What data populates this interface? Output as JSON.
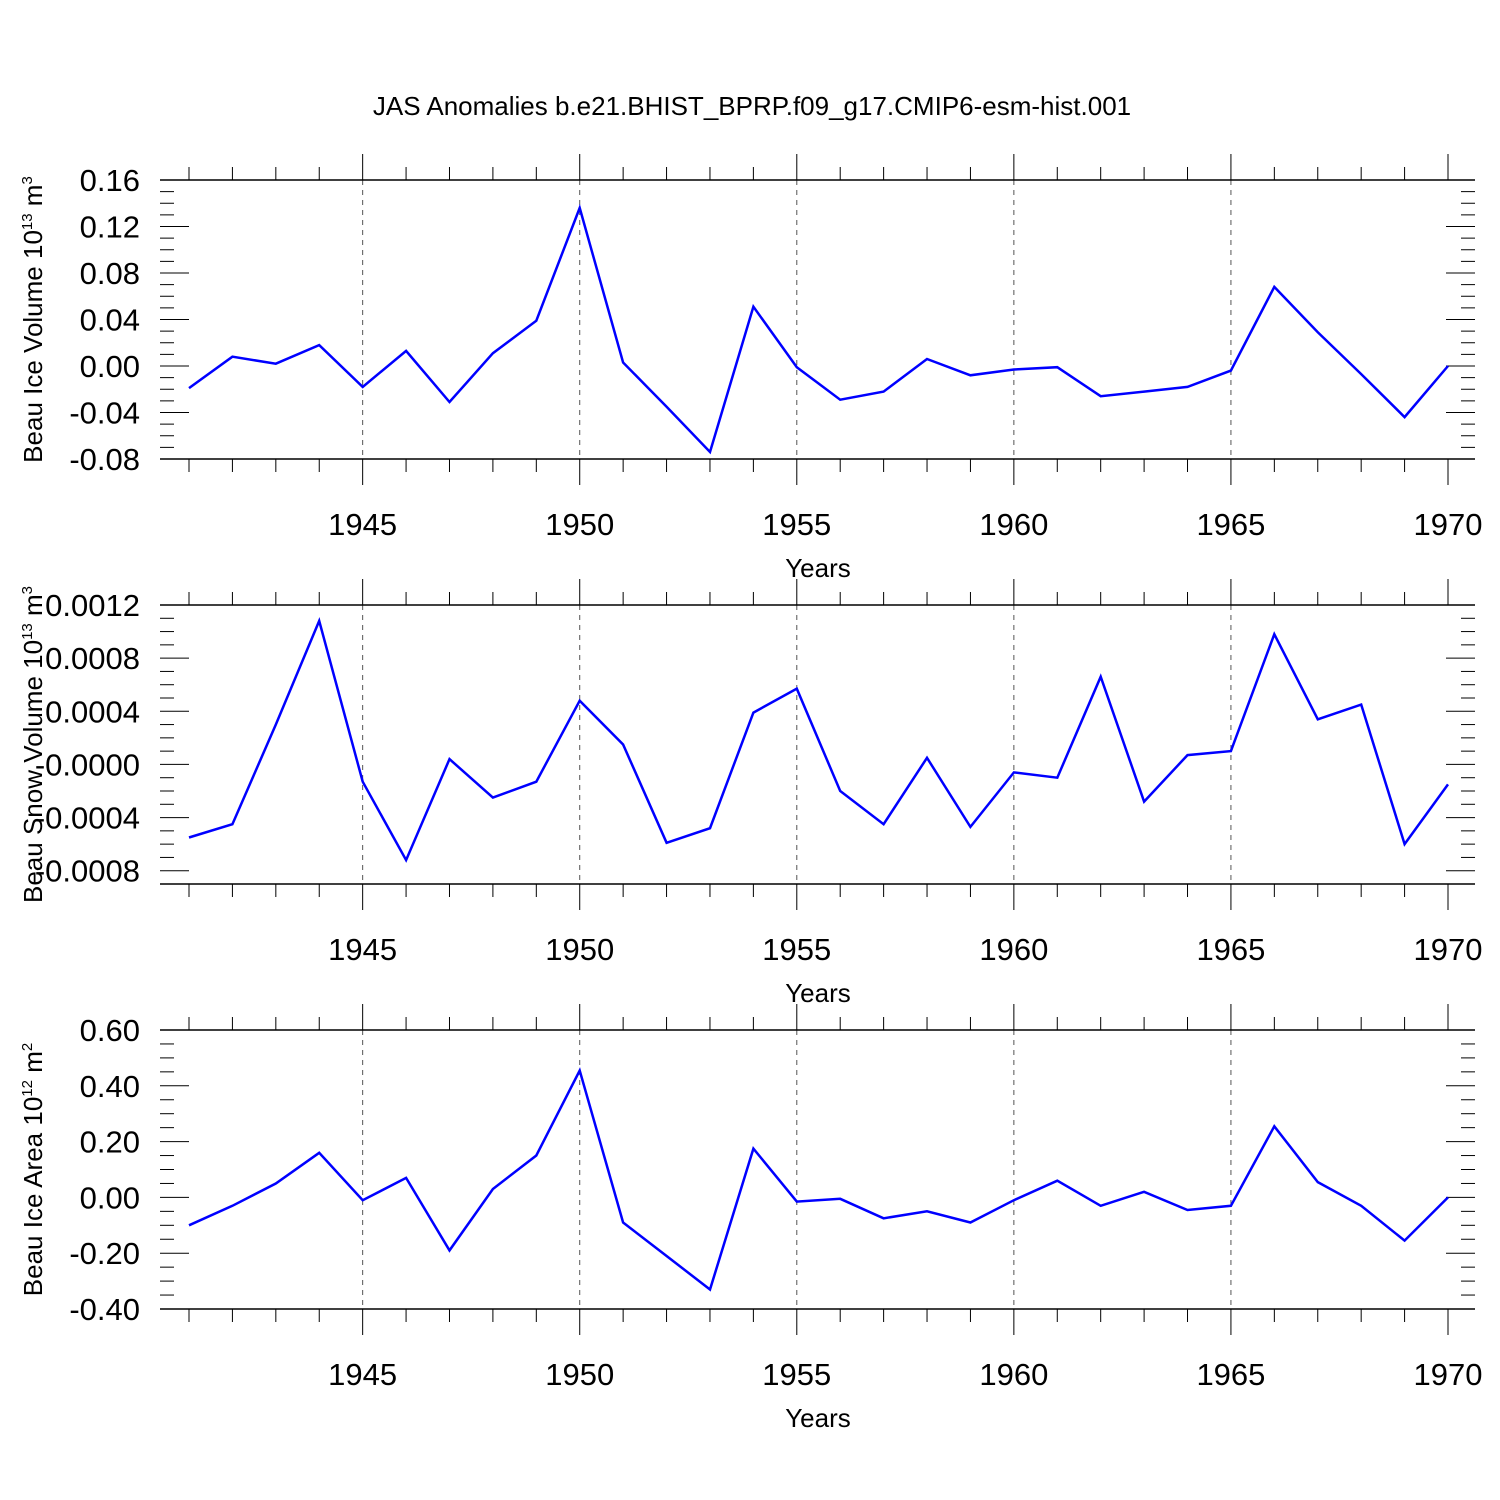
{
  "title": "JAS Anomalies b.e21.BHIST_BPRP.f09_g17.CMIP6-esm-hist.001",
  "colors": {
    "line": "#0000ff",
    "axis": "#000000",
    "grid": "#555555"
  },
  "chart_data": [
    {
      "type": "line",
      "ylabel": {
        "text": "Beau Ice Volume 10",
        "sup": "13",
        "unit": " m",
        "unit_sup": "3"
      },
      "xlabel": "Years",
      "xlim": [
        1941,
        1970
      ],
      "ylim": [
        -0.08,
        0.16
      ],
      "yticks": [
        -0.08,
        -0.04,
        0.0,
        0.04,
        0.08,
        0.12,
        0.16
      ],
      "ytick_labels": [
        "-0.08",
        "-0.04",
        "0.00",
        "0.04",
        "0.08",
        "0.12",
        "0.16"
      ],
      "xticks": [
        1945,
        1950,
        1955,
        1960,
        1965,
        1970
      ],
      "xtick_labels": [
        "1945",
        "1950",
        "1955",
        "1960",
        "1965",
        "1970"
      ],
      "grid": "vertical dashed at labeled years",
      "x": [
        1941,
        1942,
        1943,
        1944,
        1945,
        1946,
        1947,
        1948,
        1949,
        1950,
        1951,
        1952,
        1953,
        1954,
        1955,
        1956,
        1957,
        1958,
        1959,
        1960,
        1961,
        1962,
        1963,
        1964,
        1965,
        1966,
        1967,
        1968,
        1969,
        1970
      ],
      "y": [
        -0.019,
        0.008,
        0.002,
        0.018,
        -0.018,
        0.013,
        -0.031,
        0.011,
        0.039,
        0.136,
        0.003,
        -0.035,
        -0.074,
        0.051,
        -0.001,
        -0.029,
        -0.022,
        0.006,
        -0.008,
        -0.003,
        -0.001,
        -0.026,
        -0.022,
        -0.018,
        -0.004,
        0.068,
        0.029,
        -0.007,
        -0.044,
        0.0
      ]
    },
    {
      "type": "line",
      "ylabel": {
        "text": "Beau Snow Volume 10",
        "sup": "13",
        "unit": " m",
        "unit_sup": "3"
      },
      "xlabel": "Years",
      "xlim": [
        1941,
        1970
      ],
      "ylim": [
        -0.0009,
        0.0012
      ],
      "yticks": [
        -0.0008,
        -0.0004,
        0.0,
        0.0004,
        0.0008,
        0.0012
      ],
      "ytick_labels": [
        "-0.0008",
        "-0.0004",
        "-0.0000",
        "0.0004",
        "0.0008",
        "0.0012"
      ],
      "xticks": [
        1945,
        1950,
        1955,
        1960,
        1965,
        1970
      ],
      "xtick_labels": [
        "1945",
        "1950",
        "1955",
        "1960",
        "1965",
        "1970"
      ],
      "grid": "vertical dashed at labeled years",
      "x": [
        1941,
        1942,
        1943,
        1944,
        1945,
        1946,
        1947,
        1948,
        1949,
        1950,
        1951,
        1952,
        1953,
        1954,
        1955,
        1956,
        1957,
        1958,
        1959,
        1960,
        1961,
        1962,
        1963,
        1964,
        1965,
        1966,
        1967,
        1968,
        1969,
        1970
      ],
      "y": [
        -0.00055,
        -0.00045,
        0.0003,
        0.00108,
        -0.00013,
        -0.00072,
        4e-05,
        -0.00025,
        -0.00013,
        0.00048,
        0.00015,
        -0.00059,
        -0.00048,
        0.00039,
        0.00057,
        -0.0002,
        -0.00045,
        5e-05,
        -0.00047,
        -6e-05,
        -0.0001,
        0.00066,
        -0.00028,
        7e-05,
        0.0001,
        0.00098,
        0.00034,
        0.00045,
        -0.0006,
        -0.00015
      ]
    },
    {
      "type": "line",
      "ylabel": {
        "text": "Beau Ice Area 10",
        "sup": "12",
        "unit": " m",
        "unit_sup": "2"
      },
      "xlabel": "Years",
      "xlim": [
        1941,
        1970
      ],
      "ylim": [
        -0.4,
        0.6
      ],
      "yticks": [
        -0.4,
        -0.2,
        0.0,
        0.2,
        0.4,
        0.6
      ],
      "ytick_labels": [
        "-0.40",
        "-0.20",
        "0.00",
        "0.20",
        "0.40",
        "0.60"
      ],
      "xticks": [
        1945,
        1950,
        1955,
        1960,
        1965,
        1970
      ],
      "xtick_labels": [
        "1945",
        "1950",
        "1955",
        "1960",
        "1965",
        "1970"
      ],
      "grid": "vertical dashed at labeled years",
      "x": [
        1941,
        1942,
        1943,
        1944,
        1945,
        1946,
        1947,
        1948,
        1949,
        1950,
        1951,
        1952,
        1953,
        1954,
        1955,
        1956,
        1957,
        1958,
        1959,
        1960,
        1961,
        1962,
        1963,
        1964,
        1965,
        1966,
        1967,
        1968,
        1969,
        1970
      ],
      "y": [
        -0.1,
        -0.03,
        0.05,
        0.16,
        -0.01,
        0.07,
        -0.19,
        0.03,
        0.15,
        0.455,
        -0.09,
        -0.21,
        -0.33,
        0.175,
        -0.015,
        -0.005,
        -0.075,
        -0.05,
        -0.09,
        -0.01,
        0.06,
        -0.03,
        0.02,
        -0.045,
        -0.03,
        0.255,
        0.055,
        -0.03,
        -0.155,
        0.0
      ]
    }
  ]
}
